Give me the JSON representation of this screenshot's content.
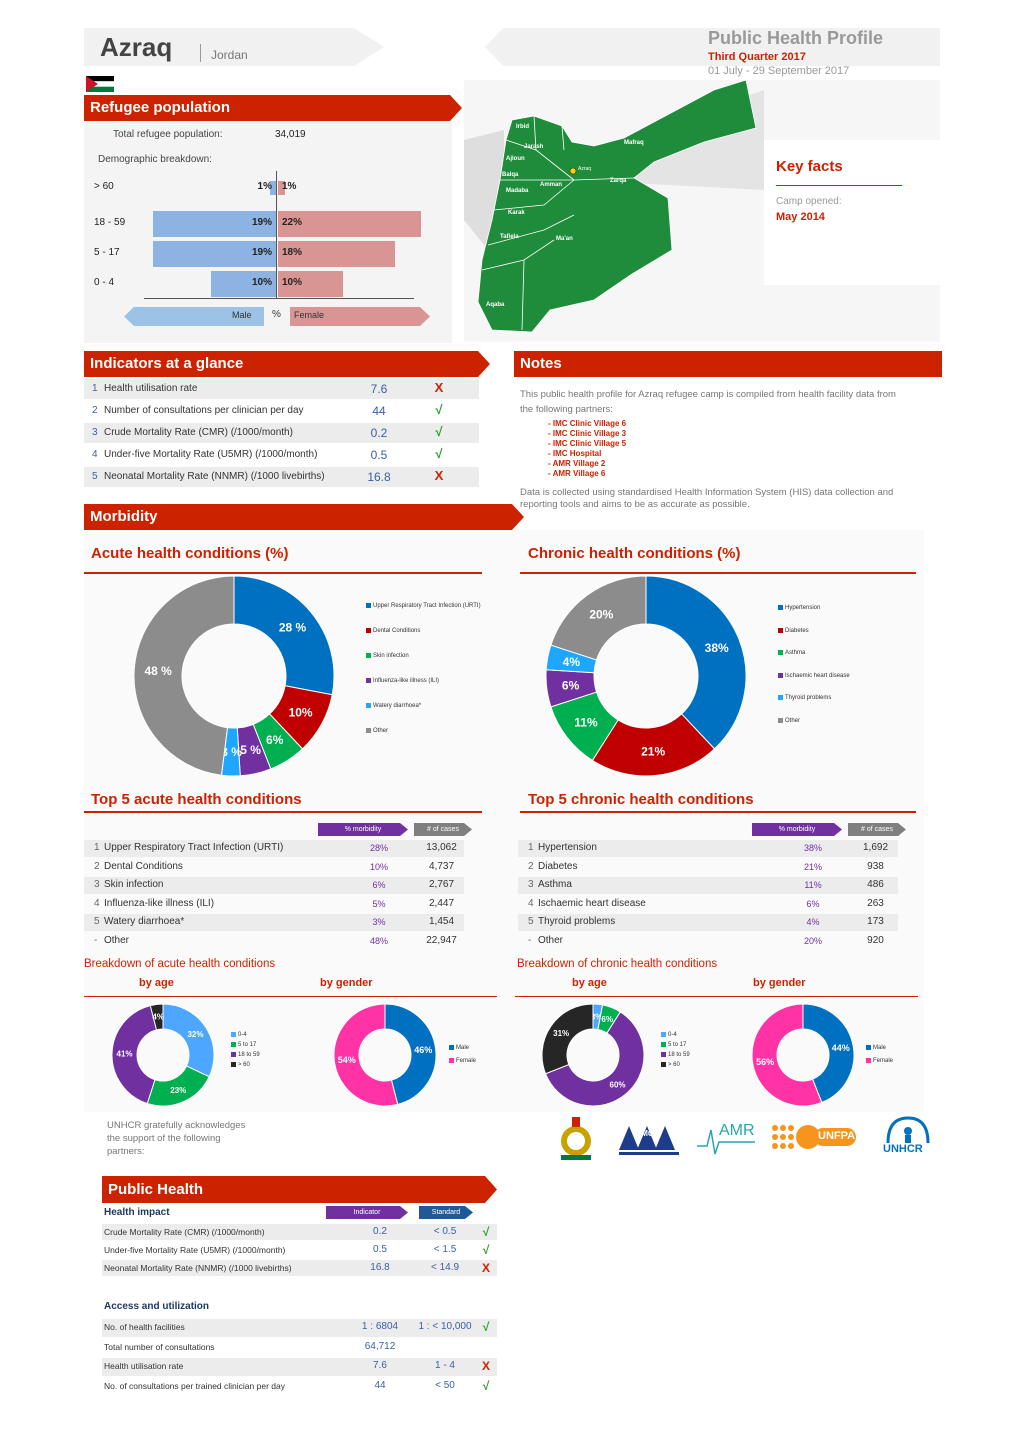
{
  "header": {
    "title": "Azraq",
    "country": "Jordan",
    "profile": "Public Health Profile",
    "quarter": "Third Quarter 2017",
    "period": "01 July - 29 September 2017"
  },
  "refugee": {
    "heading": "Refugee population",
    "total_label": "Total refugee population:",
    "total": "34,019",
    "demo_label": "Demographic breakdown:",
    "groups": [
      {
        "age": "> 60",
        "male": "1%",
        "female": "1%",
        "m": 1,
        "f": 1
      },
      {
        "age": "18 - 59",
        "male": "19%",
        "female": "22%",
        "m": 19,
        "f": 22
      },
      {
        "age": "5 - 17",
        "male": "19%",
        "female": "18%",
        "m": 19,
        "f": 18
      },
      {
        "age": "0 - 4",
        "male": "10%",
        "female": "10%",
        "m": 10,
        "f": 10
      }
    ],
    "male": "Male",
    "pct": "%",
    "female": "Female"
  },
  "map": {
    "regions": [
      "Irbid",
      "Mafraq",
      "Jarash",
      "Ajloun",
      "Zarqa",
      "Balqa",
      "Amman",
      "Madaba",
      "Karak",
      "Tafiela",
      "Ma'an",
      "Aqaba"
    ],
    "camp": "Azraq"
  },
  "keyfacts": {
    "heading": "Key facts",
    "opened_label": "Camp opened:",
    "opened": "May 2014"
  },
  "indicators": {
    "heading": "Indicators at a glance",
    "rows": [
      {
        "n": "1",
        "label": "Health utilisation rate",
        "value": "7.6",
        "ok": false
      },
      {
        "n": "2",
        "label": "Number of consultations per clinician per day",
        "value": "44",
        "ok": true
      },
      {
        "n": "3",
        "label": "Crude Mortality Rate (CMR) (/1000/month)",
        "value": "0.2",
        "ok": true
      },
      {
        "n": "4",
        "label": "Under-five Mortality Rate (U5MR) (/1000/month)",
        "value": "0.5",
        "ok": true
      },
      {
        "n": "5",
        "label": "Neonatal Mortality Rate (NNMR) (/1000 livebirths)",
        "value": "16.8",
        "ok": false
      }
    ],
    "check": "√",
    "cross": "X"
  },
  "notes": {
    "heading": "Notes",
    "intro": "This public health profile for Azraq refugee camp is compiled from health facility data from the following partners:",
    "partners": [
      "IMC Clinic Village 6",
      "IMC Clinic Village 3",
      "IMC Clinic Village 5",
      "IMC Hospital",
      "AMR Village 2",
      "AMR Village 6"
    ],
    "outro": "Data is collected using standardised Health Information System (HIS) data collection and reporting tools and aims to be as accurate as possible."
  },
  "morbidity": {
    "heading": "Morbidity"
  },
  "acute": {
    "title": "Acute health conditions (%)",
    "top_title": "Top 5 acute health conditions",
    "slices": [
      {
        "name": "Upper Respiratory Tract Infection (URTI)",
        "value": 28,
        "label": "28 %",
        "color": "#0070c0"
      },
      {
        "name": "Dental Conditions",
        "value": 10,
        "label": "10%",
        "color": "#c00000"
      },
      {
        "name": "Skin infection",
        "value": 6,
        "label": "6%",
        "color": "#00b050"
      },
      {
        "name": "Influenza-like illness (ILI)",
        "value": 5,
        "label": "5 %",
        "color": "#7030a0"
      },
      {
        "name": "Watery diarrhoea*",
        "value": 3,
        "label": "3 %",
        "color": "#1ea7ff"
      },
      {
        "name": "Other",
        "value": 48,
        "label": "48 %",
        "color": "#8c8c8c"
      }
    ],
    "col1": "% morbidity",
    "col2": "# of cases",
    "rows": [
      {
        "n": "1",
        "name": "Upper Respiratory Tract Infection (URTI)",
        "pct": "28%",
        "cases": "13,062"
      },
      {
        "n": "2",
        "name": "Dental Conditions",
        "pct": "10%",
        "cases": "4,737"
      },
      {
        "n": "3",
        "name": "Skin infection",
        "pct": "6%",
        "cases": "2,767"
      },
      {
        "n": "4",
        "name": "Influenza-like illness (ILI)",
        "pct": "5%",
        "cases": "2,447"
      },
      {
        "n": "5",
        "name": "Watery diarrhoea*",
        "pct": "3%",
        "cases": "1,454"
      },
      {
        "n": "-",
        "name": "Other",
        "pct": "48%",
        "cases": "22,947"
      }
    ],
    "breakdown": "Breakdown of acute health conditions",
    "by_age": "by age",
    "by_gender": "by gender",
    "age": [
      {
        "name": "0-4",
        "value": 32,
        "label": "32%",
        "color": "#4da6ff"
      },
      {
        "name": "5 to 17",
        "value": 23,
        "label": "23%",
        "color": "#00b050"
      },
      {
        "name": "18 to 59",
        "value": 41,
        "label": "41%",
        "color": "#7030a0"
      },
      {
        "name": "> 60",
        "value": 4,
        "label": "4%",
        "color": "#262626"
      }
    ],
    "gender": [
      {
        "name": "Male",
        "value": 46,
        "label": "46%",
        "color": "#0070c0"
      },
      {
        "name": "Female",
        "value": 54,
        "label": "54%",
        "color": "#ff33a6"
      }
    ]
  },
  "chronic": {
    "title": "Chronic health conditions (%)",
    "top_title": "Top 5 chronic health conditions",
    "slices": [
      {
        "name": "Hypertension",
        "value": 38,
        "label": "38%",
        "color": "#0070c0"
      },
      {
        "name": "Diabetes",
        "value": 21,
        "label": "21%",
        "color": "#c00000"
      },
      {
        "name": "Asthma",
        "value": 11,
        "label": "11%",
        "color": "#00b050"
      },
      {
        "name": "Ischaemic heart disease",
        "value": 6,
        "label": "6%",
        "color": "#7030a0"
      },
      {
        "name": "Thyroid problems",
        "value": 4,
        "label": "4%",
        "color": "#1ea7ff"
      },
      {
        "name": "Other",
        "value": 20,
        "label": "20%",
        "color": "#8c8c8c"
      }
    ],
    "col1": "% morbidity",
    "col2": "# of cases",
    "rows": [
      {
        "n": "1",
        "name": "Hypertension",
        "pct": "38%",
        "cases": "1,692"
      },
      {
        "n": "2",
        "name": "Diabetes",
        "pct": "21%",
        "cases": "938"
      },
      {
        "n": "3",
        "name": "Asthma",
        "pct": "11%",
        "cases": "486"
      },
      {
        "n": "4",
        "name": "Ischaemic heart disease",
        "pct": "6%",
        "cases": "263"
      },
      {
        "n": "5",
        "name": "Thyroid problems",
        "pct": "4%",
        "cases": "173"
      },
      {
        "n": "-",
        "name": "Other",
        "pct": "20%",
        "cases": "920"
      }
    ],
    "breakdown": "Breakdown of chronic health conditions",
    "by_age": "by age",
    "by_gender": "by gender",
    "age": [
      {
        "name": "0-4",
        "value": 3,
        "label": "3%",
        "color": "#4da6ff"
      },
      {
        "name": "5 to 17",
        "value": 6,
        "label": "6%",
        "color": "#00b050"
      },
      {
        "name": "18 to 59",
        "value": 60,
        "label": "60%",
        "color": "#7030a0"
      },
      {
        "name": "> 60",
        "value": 31,
        "label": "31%",
        "color": "#262626"
      }
    ],
    "gender": [
      {
        "name": "Male",
        "value": 44,
        "label": "44%",
        "color": "#0070c0"
      },
      {
        "name": "Female",
        "value": 56,
        "label": "56%",
        "color": "#ff33a6"
      }
    ]
  },
  "ack": {
    "text": "UNHCR gratefully acknowledges the support of the following partners:",
    "logos": [
      "jordan-emblem",
      "IMC",
      "AMR",
      "UNFPA",
      "UNHCR"
    ],
    "imc": "IMC",
    "amr": "AMR",
    "unfpa": "UNFPA",
    "unhcr": "UNHCR"
  },
  "publichealth": {
    "heading": "Public Health",
    "impact": "Health impact",
    "col_ind": "Indicator",
    "col_std": "Standard",
    "impact_rows": [
      {
        "label": "Crude Mortality Rate (CMR) (/1000/month)",
        "value": "0.2",
        "std": "< 0.5",
        "ok": true
      },
      {
        "label": "Under-five Mortality Rate (U5MR) (/1000/month)",
        "value": "0.5",
        "std": "< 1.5",
        "ok": true
      },
      {
        "label": "Neonatal Mortality Rate (NNMR) (/1000 livebirths)",
        "value": "16.8",
        "std": "< 14.9",
        "ok": false
      }
    ],
    "access": "Access and utilization",
    "access_rows": [
      {
        "label": "No. of health facilities",
        "value": "1 : 6804",
        "std": "1 : < 10,000",
        "ok": true
      },
      {
        "label": "Total number of consultations",
        "value": "64,712",
        "std": "",
        "ok": null
      },
      {
        "label": "Health utilisation rate",
        "value": "7.6",
        "std": "1 - 4",
        "ok": false
      },
      {
        "label": "No. of consultations per trained clinician per day",
        "value": "44",
        "std": "< 50",
        "ok": true
      }
    ]
  }
}
